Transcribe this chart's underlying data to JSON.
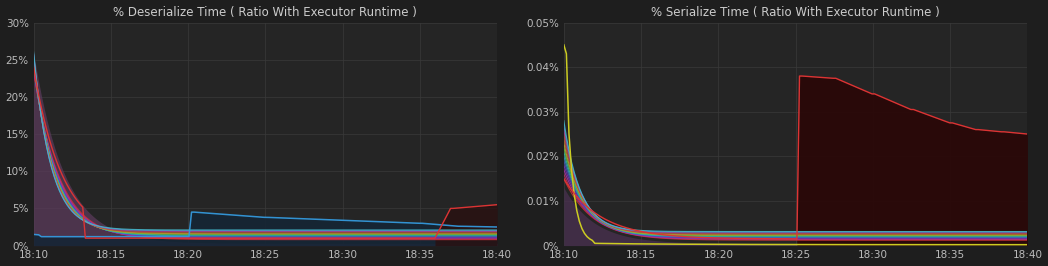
{
  "bg_color": "#1e1e1e",
  "plot_bg_color": "#252525",
  "grid_color": "#3a3a3a",
  "text_color": "#bbbbbb",
  "title_color": "#cccccc",
  "left_title": "% Deserialize Time ( Ratio With Executor Runtime )",
  "right_title": "% Serialize Time ( Ratio With Executor Runtime )",
  "x_ticks": [
    "18:10",
    "18:15",
    "18:20",
    "18:25",
    "18:30",
    "18:35",
    "18:40"
  ],
  "left_ylim": [
    0,
    0.3
  ],
  "right_ylim": [
    0,
    0.0005
  ],
  "left_yticks": [
    0,
    0.05,
    0.1,
    0.15,
    0.2,
    0.25,
    0.3
  ],
  "right_yticks": [
    0,
    0.0001,
    0.0002,
    0.0003,
    0.0004,
    0.0005
  ],
  "left_ytick_labels": [
    "0%",
    "5%",
    "10%",
    "15%",
    "20%",
    "25%",
    "30%"
  ],
  "right_ytick_labels": [
    "0%",
    "0.01%",
    "0.02%",
    "0.03%",
    "0.04%",
    "0.05%"
  ]
}
